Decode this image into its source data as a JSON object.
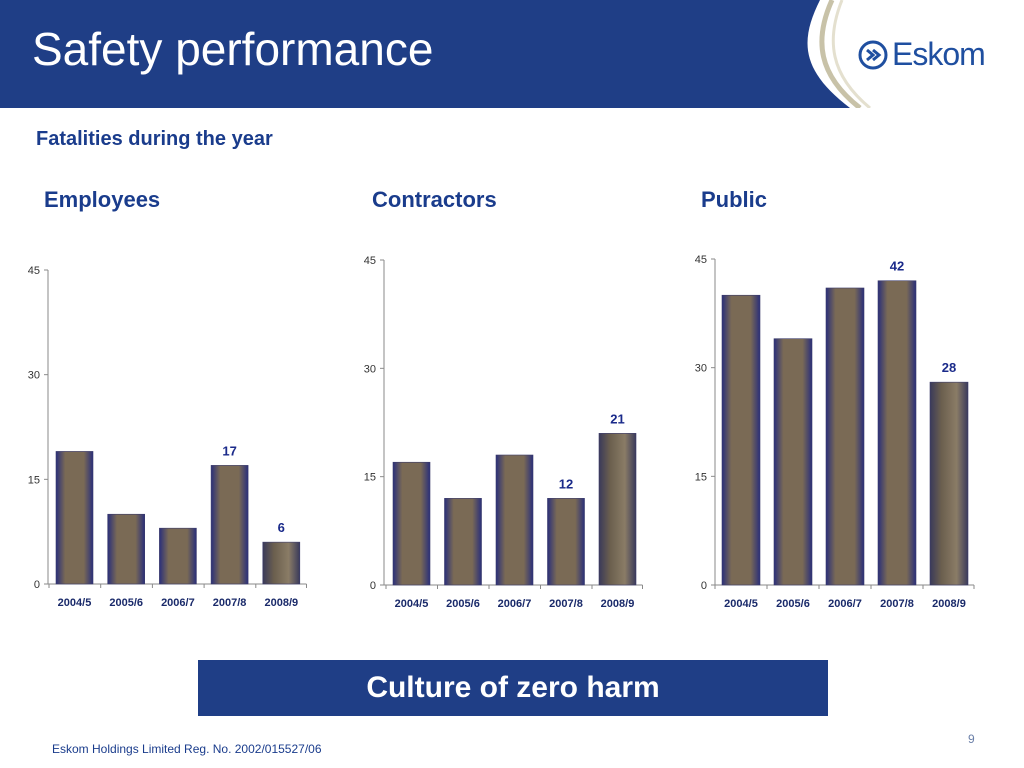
{
  "header": {
    "title": "Safety performance",
    "logo_text": "Eskom"
  },
  "subtitle": "Fatalities during the year",
  "colors": {
    "header_bg": "#1f3e86",
    "accent_text": "#1a3c8c",
    "bar_edge": "#2a2f7a",
    "bar_mid": "#7a6a55",
    "bar_last": "#6b5f4e"
  },
  "chart_data": [
    {
      "type": "bar",
      "title": "Employees",
      "categories": [
        "2004/5",
        "2005/6",
        "2006/7",
        "2007/8",
        "2008/9"
      ],
      "values": [
        19,
        10,
        8,
        17,
        6
      ],
      "data_labels": [
        null,
        null,
        null,
        "17",
        "6"
      ],
      "yticks": [
        "0",
        "15",
        "30",
        "45"
      ],
      "ylim": [
        0,
        45
      ],
      "grid": false
    },
    {
      "type": "bar",
      "title": "Contractors",
      "categories": [
        "2004/5",
        "2005/6",
        "2006/7",
        "2007/8",
        "2008/9"
      ],
      "values": [
        17,
        12,
        18,
        12,
        21
      ],
      "data_labels": [
        null,
        null,
        null,
        "12",
        "21"
      ],
      "yticks": [
        "0",
        "15",
        "30",
        "45"
      ],
      "ylim": [
        0,
        45
      ],
      "grid": false
    },
    {
      "type": "bar",
      "title": "Public",
      "categories": [
        "2004/5",
        "2005/6",
        "2006/7",
        "2007/8",
        "2008/9"
      ],
      "values": [
        40,
        34,
        41,
        42,
        28
      ],
      "data_labels": [
        null,
        null,
        null,
        "42",
        "28"
      ],
      "yticks": [
        "0",
        "15",
        "30",
        "45"
      ],
      "ylim": [
        0,
        45
      ],
      "grid": false
    }
  ],
  "banner": {
    "text": "Culture of zero harm"
  },
  "footer": {
    "text": "Eskom Holdings Limited Reg. No. 2002/015527/06",
    "page_number": "9"
  }
}
